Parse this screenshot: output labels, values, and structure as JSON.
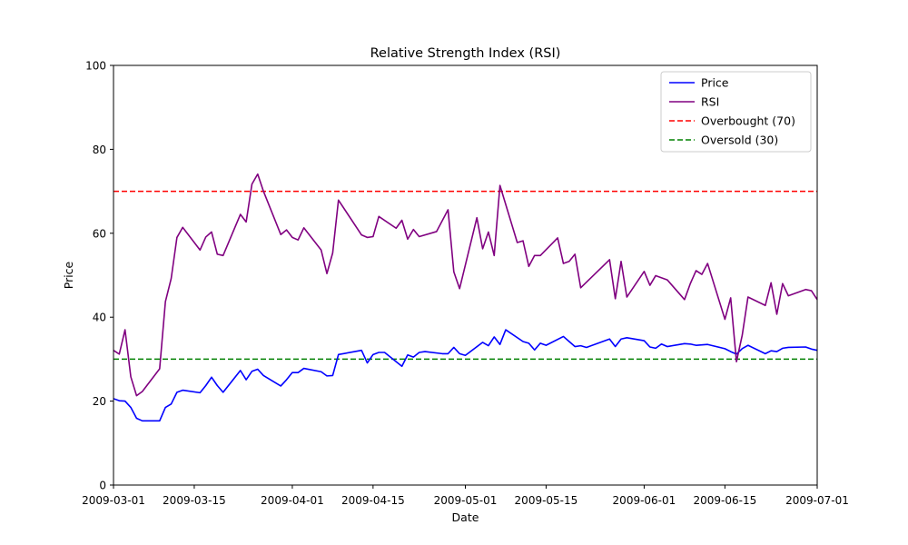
{
  "chart_data": {
    "type": "line",
    "title": "Relative Strength Index (RSI)",
    "xlabel": "Date",
    "ylabel": "Price",
    "xlim": [
      "2009-03-01",
      "2009-07-01"
    ],
    "ylim": [
      0,
      100
    ],
    "xticks": [
      "2009-03-01",
      "2009-03-15",
      "2009-04-01",
      "2009-04-15",
      "2009-05-01",
      "2009-05-15",
      "2009-06-01",
      "2009-06-15",
      "2009-07-01"
    ],
    "yticks": [
      0,
      20,
      40,
      60,
      80,
      100
    ],
    "legend_position": "top-right",
    "series": [
      {
        "name": "Price",
        "color": "#0000ff",
        "style": "solid",
        "points": [
          [
            "2009-03-01",
            20.6
          ],
          [
            "2009-03-02",
            20.1
          ],
          [
            "2009-03-03",
            20.0
          ],
          [
            "2009-03-04",
            18.5
          ],
          [
            "2009-03-05",
            15.9
          ],
          [
            "2009-03-06",
            15.3
          ],
          [
            "2009-03-09",
            15.3
          ],
          [
            "2009-03-10",
            18.5
          ],
          [
            "2009-03-11",
            19.3
          ],
          [
            "2009-03-12",
            22.1
          ],
          [
            "2009-03-13",
            22.6
          ],
          [
            "2009-03-16",
            22.0
          ],
          [
            "2009-03-17",
            23.7
          ],
          [
            "2009-03-18",
            25.7
          ],
          [
            "2009-03-19",
            23.7
          ],
          [
            "2009-03-20",
            22.1
          ],
          [
            "2009-03-23",
            27.3
          ],
          [
            "2009-03-24",
            25.1
          ],
          [
            "2009-03-25",
            27.1
          ],
          [
            "2009-03-26",
            27.6
          ],
          [
            "2009-03-27",
            26.1
          ],
          [
            "2009-03-30",
            23.6
          ],
          [
            "2009-03-31",
            25.1
          ],
          [
            "2009-04-01",
            26.8
          ],
          [
            "2009-04-02",
            26.8
          ],
          [
            "2009-04-03",
            27.8
          ],
          [
            "2009-04-06",
            27.0
          ],
          [
            "2009-04-07",
            26.0
          ],
          [
            "2009-04-08",
            26.1
          ],
          [
            "2009-04-09",
            31.1
          ],
          [
            "2009-04-13",
            32.1
          ],
          [
            "2009-04-14",
            29.1
          ],
          [
            "2009-04-15",
            31.1
          ],
          [
            "2009-04-16",
            31.6
          ],
          [
            "2009-04-17",
            31.6
          ],
          [
            "2009-04-20",
            28.3
          ],
          [
            "2009-04-21",
            31.0
          ],
          [
            "2009-04-22",
            30.5
          ],
          [
            "2009-04-23",
            31.6
          ],
          [
            "2009-04-24",
            31.8
          ],
          [
            "2009-04-27",
            31.3
          ],
          [
            "2009-04-28",
            31.3
          ],
          [
            "2009-04-29",
            32.8
          ],
          [
            "2009-04-30",
            31.3
          ],
          [
            "2009-05-01",
            30.9
          ],
          [
            "2009-05-04",
            34.0
          ],
          [
            "2009-05-05",
            33.2
          ],
          [
            "2009-05-06",
            35.3
          ],
          [
            "2009-05-07",
            33.5
          ],
          [
            "2009-05-08",
            37.0
          ],
          [
            "2009-05-11",
            34.2
          ],
          [
            "2009-05-12",
            33.8
          ],
          [
            "2009-05-13",
            32.2
          ],
          [
            "2009-05-14",
            33.8
          ],
          [
            "2009-05-15",
            33.3
          ],
          [
            "2009-05-18",
            35.4
          ],
          [
            "2009-05-19",
            34.2
          ],
          [
            "2009-05-20",
            33.0
          ],
          [
            "2009-05-21",
            33.2
          ],
          [
            "2009-05-22",
            32.8
          ],
          [
            "2009-05-26",
            34.8
          ],
          [
            "2009-05-27",
            33.0
          ],
          [
            "2009-05-28",
            34.8
          ],
          [
            "2009-05-29",
            35.1
          ],
          [
            "2009-06-01",
            34.4
          ],
          [
            "2009-06-02",
            32.9
          ],
          [
            "2009-06-03",
            32.6
          ],
          [
            "2009-06-04",
            33.6
          ],
          [
            "2009-06-05",
            33.0
          ],
          [
            "2009-06-08",
            33.7
          ],
          [
            "2009-06-09",
            33.6
          ],
          [
            "2009-06-10",
            33.3
          ],
          [
            "2009-06-11",
            33.4
          ],
          [
            "2009-06-12",
            33.5
          ],
          [
            "2009-06-15",
            32.5
          ],
          [
            "2009-06-16",
            31.8
          ],
          [
            "2009-06-17",
            31.2
          ],
          [
            "2009-06-18",
            32.5
          ],
          [
            "2009-06-19",
            33.3
          ],
          [
            "2009-06-22",
            31.3
          ],
          [
            "2009-06-23",
            32.0
          ],
          [
            "2009-06-24",
            31.8
          ],
          [
            "2009-06-25",
            32.6
          ],
          [
            "2009-06-26",
            32.8
          ],
          [
            "2009-06-29",
            32.9
          ],
          [
            "2009-06-30",
            32.4
          ],
          [
            "2009-07-01",
            32.1
          ]
        ]
      },
      {
        "name": "RSI",
        "color": "#800080",
        "style": "solid",
        "points": [
          [
            "2009-03-01",
            32.1
          ],
          [
            "2009-03-02",
            31.2
          ],
          [
            "2009-03-03",
            37.0
          ],
          [
            "2009-03-04",
            25.8
          ],
          [
            "2009-03-05",
            21.3
          ],
          [
            "2009-03-06",
            22.3
          ],
          [
            "2009-03-09",
            27.7
          ],
          [
            "2009-03-10",
            43.7
          ],
          [
            "2009-03-11",
            49.2
          ],
          [
            "2009-03-12",
            59.0
          ],
          [
            "2009-03-13",
            61.4
          ],
          [
            "2009-03-16",
            56.0
          ],
          [
            "2009-03-17",
            59.1
          ],
          [
            "2009-03-18",
            60.3
          ],
          [
            "2009-03-19",
            55.0
          ],
          [
            "2009-03-20",
            54.7
          ],
          [
            "2009-03-23",
            64.5
          ],
          [
            "2009-03-24",
            62.7
          ],
          [
            "2009-03-25",
            71.7
          ],
          [
            "2009-03-26",
            74.1
          ],
          [
            "2009-03-27",
            70.0
          ],
          [
            "2009-03-30",
            59.7
          ],
          [
            "2009-03-31",
            60.8
          ],
          [
            "2009-04-01",
            59.0
          ],
          [
            "2009-04-02",
            58.4
          ],
          [
            "2009-04-03",
            61.3
          ],
          [
            "2009-04-06",
            56.0
          ],
          [
            "2009-04-07",
            50.4
          ],
          [
            "2009-04-08",
            55.3
          ],
          [
            "2009-04-09",
            67.9
          ],
          [
            "2009-04-13",
            59.6
          ],
          [
            "2009-04-14",
            59.0
          ],
          [
            "2009-04-15",
            59.2
          ],
          [
            "2009-04-16",
            64.0
          ],
          [
            "2009-04-19",
            61.2
          ],
          [
            "2009-04-20",
            63.1
          ],
          [
            "2009-04-21",
            58.6
          ],
          [
            "2009-04-22",
            60.9
          ],
          [
            "2009-04-23",
            59.2
          ],
          [
            "2009-04-26",
            60.4
          ],
          [
            "2009-04-28",
            65.6
          ],
          [
            "2009-04-29",
            50.8
          ],
          [
            "2009-04-30",
            46.8
          ],
          [
            "2009-05-03",
            63.7
          ],
          [
            "2009-05-04",
            56.3
          ],
          [
            "2009-05-05",
            60.3
          ],
          [
            "2009-05-06",
            54.7
          ],
          [
            "2009-05-07",
            71.4
          ],
          [
            "2009-05-10",
            57.8
          ],
          [
            "2009-05-11",
            58.2
          ],
          [
            "2009-05-12",
            52.1
          ],
          [
            "2009-05-13",
            54.7
          ],
          [
            "2009-05-14",
            54.7
          ],
          [
            "2009-05-17",
            58.9
          ],
          [
            "2009-05-18",
            52.8
          ],
          [
            "2009-05-19",
            53.3
          ],
          [
            "2009-05-20",
            55.0
          ],
          [
            "2009-05-21",
            47.0
          ],
          [
            "2009-05-26",
            53.7
          ],
          [
            "2009-05-27",
            44.4
          ],
          [
            "2009-05-28",
            53.3
          ],
          [
            "2009-05-29",
            44.8
          ],
          [
            "2009-06-01",
            50.9
          ],
          [
            "2009-06-02",
            47.6
          ],
          [
            "2009-06-03",
            49.9
          ],
          [
            "2009-06-05",
            48.9
          ],
          [
            "2009-06-08",
            44.2
          ],
          [
            "2009-06-09",
            48.0
          ],
          [
            "2009-06-10",
            51.1
          ],
          [
            "2009-06-11",
            50.2
          ],
          [
            "2009-06-12",
            52.8
          ],
          [
            "2009-06-15",
            39.5
          ],
          [
            "2009-06-16",
            44.6
          ],
          [
            "2009-06-17",
            29.4
          ],
          [
            "2009-06-18",
            35.7
          ],
          [
            "2009-06-19",
            44.8
          ],
          [
            "2009-06-22",
            42.8
          ],
          [
            "2009-06-23",
            48.2
          ],
          [
            "2009-06-24",
            40.7
          ],
          [
            "2009-06-25",
            48.0
          ],
          [
            "2009-06-26",
            45.1
          ],
          [
            "2009-06-29",
            46.6
          ],
          [
            "2009-06-30",
            46.3
          ],
          [
            "2009-07-01",
            44.2
          ]
        ]
      }
    ],
    "reference_lines": [
      {
        "name": "Overbought (70)",
        "y": 70,
        "color": "#ff0000",
        "style": "dashed"
      },
      {
        "name": "Oversold (30)",
        "y": 30,
        "color": "#008000",
        "style": "dashed"
      }
    ]
  }
}
